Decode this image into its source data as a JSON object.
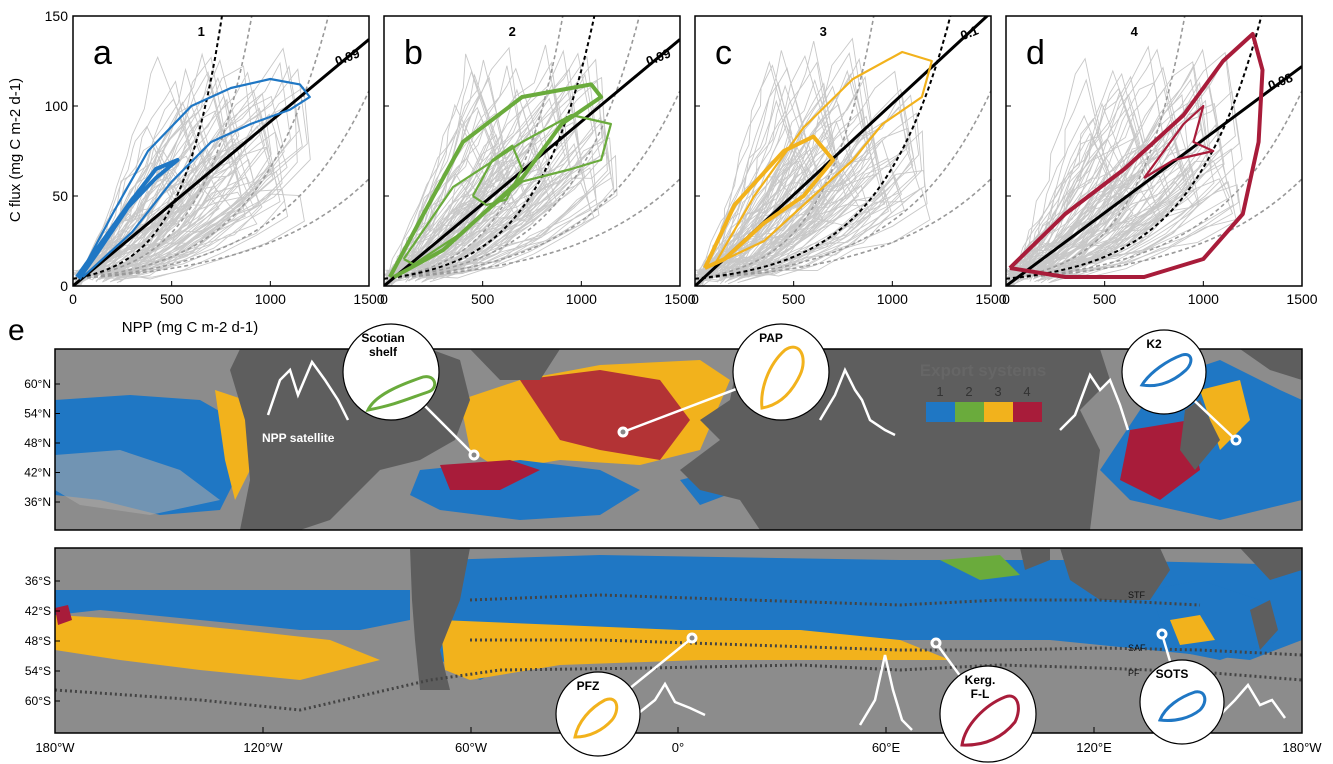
{
  "figure": {
    "panel_e_letter": "e",
    "export_systems": {
      "title": "Export systems",
      "classes": [
        "1",
        "2",
        "3",
        "4"
      ],
      "colors": [
        "#1f77c4",
        "#6aab3c",
        "#f2b21c",
        "#a81c3a"
      ]
    },
    "npp_satellite_label": "NPP satellite",
    "north_lat_ticks": [
      "60°N",
      "54°N",
      "48°N",
      "42°N",
      "36°N"
    ],
    "south_lat_ticks": [
      "36°S",
      "42°S",
      "48°S",
      "54°S",
      "60°S"
    ],
    "lon_ticks": [
      "180°W",
      "120°W",
      "60°W",
      "0°",
      "60°E",
      "120°E",
      "180°W"
    ],
    "front_labels": [
      "STF",
      "SAF",
      "PF"
    ],
    "sites": [
      {
        "label": "Scotian shelf",
        "system": 2
      },
      {
        "label": "PAP",
        "system": 3
      },
      {
        "label": "K2",
        "system": 1
      },
      {
        "label": "PFZ",
        "system": 3
      },
      {
        "label": "Kerg. F-L",
        "system": 4
      },
      {
        "label": "SOTS",
        "system": 1
      }
    ]
  },
  "chart_data": [
    {
      "type": "line",
      "panel": "a",
      "system": 1,
      "xlabel": "NPP (mg C m-2 d-1)",
      "ylabel": "C flux (mg C m-2 d-1)",
      "xlim": [
        0,
        1500
      ],
      "ylim": [
        0,
        150
      ],
      "xticks": [
        0,
        500,
        1000,
        1500
      ],
      "yticks": [
        0,
        50,
        100,
        150
      ],
      "reference_lines": [
        {
          "label": "1"
        },
        {
          "label": "0.09",
          "slope": 0.09
        }
      ],
      "series": [
        {
          "points": [
            [
              20,
              5
            ],
            [
              150,
              25
            ],
            [
              300,
              48
            ],
            [
              420,
              65
            ],
            [
              530,
              70
            ],
            [
              420,
              60
            ],
            [
              280,
              44
            ],
            [
              120,
              18
            ],
            [
              30,
              4
            ]
          ]
        },
        {
          "points": [
            [
              30,
              5
            ],
            [
              200,
              40
            ],
            [
              380,
              75
            ],
            [
              600,
              100
            ],
            [
              800,
              110
            ],
            [
              1000,
              115
            ],
            [
              1150,
              112
            ],
            [
              1200,
              105
            ],
            [
              1100,
              98
            ],
            [
              900,
              90
            ],
            [
              700,
              80
            ],
            [
              500,
              58
            ],
            [
              300,
              30
            ],
            [
              50,
              5
            ]
          ]
        }
      ]
    },
    {
      "type": "line",
      "panel": "b",
      "system": 2,
      "xlim": [
        0,
        1500
      ],
      "ylim": [
        0,
        150
      ],
      "xticks": [
        0,
        500,
        1000,
        1500
      ],
      "yticks": [
        0,
        50,
        100,
        150
      ],
      "reference_lines": [
        {
          "label": "2"
        },
        {
          "label": "0.09",
          "slope": 0.09
        }
      ],
      "series": [
        {
          "points": [
            [
              30,
              5
            ],
            [
              200,
              40
            ],
            [
              400,
              80
            ],
            [
              700,
              105
            ],
            [
              1050,
              112
            ],
            [
              1100,
              105
            ],
            [
              900,
              90
            ],
            [
              700,
              60
            ],
            [
              500,
              40
            ],
            [
              300,
              20
            ],
            [
              50,
              5
            ]
          ]
        },
        {
          "points": [
            [
              450,
              50
            ],
            [
              550,
              70
            ],
            [
              650,
              78
            ],
            [
              700,
              65
            ],
            [
              620,
              48
            ],
            [
              520,
              45
            ],
            [
              450,
              50
            ]
          ]
        },
        {
          "points": [
            [
              100,
              15
            ],
            [
              350,
              55
            ],
            [
              700,
              80
            ],
            [
              950,
              95
            ],
            [
              1150,
              90
            ],
            [
              1100,
              70
            ],
            [
              950,
              65
            ],
            [
              700,
              58
            ],
            [
              400,
              30
            ],
            [
              150,
              12
            ],
            [
              100,
              15
            ]
          ]
        }
      ]
    },
    {
      "type": "line",
      "panel": "c",
      "system": 3,
      "xlim": [
        0,
        1500
      ],
      "ylim": [
        0,
        150
      ],
      "xticks": [
        0,
        500,
        1000,
        1500
      ],
      "yticks": [
        0,
        50,
        100,
        150
      ],
      "reference_lines": [
        {
          "label": "3"
        },
        {
          "label": "0.1",
          "slope": 0.1
        }
      ],
      "series": [
        {
          "points": [
            [
              50,
              10
            ],
            [
              200,
              45
            ],
            [
              450,
              75
            ],
            [
              600,
              83
            ],
            [
              700,
              70
            ],
            [
              550,
              50
            ],
            [
              350,
              35
            ],
            [
              150,
              15
            ],
            [
              50,
              10
            ]
          ]
        },
        {
          "points": [
            [
              100,
              12
            ],
            [
              300,
              50
            ],
            [
              550,
              88
            ],
            [
              800,
              115
            ],
            [
              1050,
              130
            ],
            [
              1200,
              125
            ],
            [
              1150,
              105
            ],
            [
              950,
              90
            ],
            [
              800,
              70
            ],
            [
              600,
              50
            ],
            [
              350,
              25
            ],
            [
              100,
              12
            ]
          ]
        }
      ]
    },
    {
      "type": "line",
      "panel": "d",
      "system": 4,
      "xlim": [
        0,
        1500
      ],
      "ylim": [
        0,
        150
      ],
      "xticks": [
        0,
        500,
        1000,
        1500
      ],
      "yticks": [
        0,
        50,
        100,
        150
      ],
      "reference_lines": [
        {
          "label": "4"
        },
        {
          "label": "0.08",
          "slope": 0.08
        }
      ],
      "series": [
        {
          "points": [
            [
              20,
              10
            ],
            [
              300,
              40
            ],
            [
              600,
              65
            ],
            [
              900,
              95
            ],
            [
              1100,
              125
            ],
            [
              1250,
              140
            ],
            [
              1300,
              120
            ],
            [
              1280,
              80
            ],
            [
              1200,
              40
            ],
            [
              1000,
              15
            ],
            [
              700,
              5
            ],
            [
              300,
              5
            ],
            [
              20,
              10
            ]
          ]
        },
        {
          "points": [
            [
              700,
              60
            ],
            [
              900,
              90
            ],
            [
              1000,
              100
            ],
            [
              950,
              80
            ],
            [
              1050,
              75
            ],
            [
              850,
              70
            ],
            [
              700,
              60
            ]
          ]
        }
      ]
    }
  ]
}
